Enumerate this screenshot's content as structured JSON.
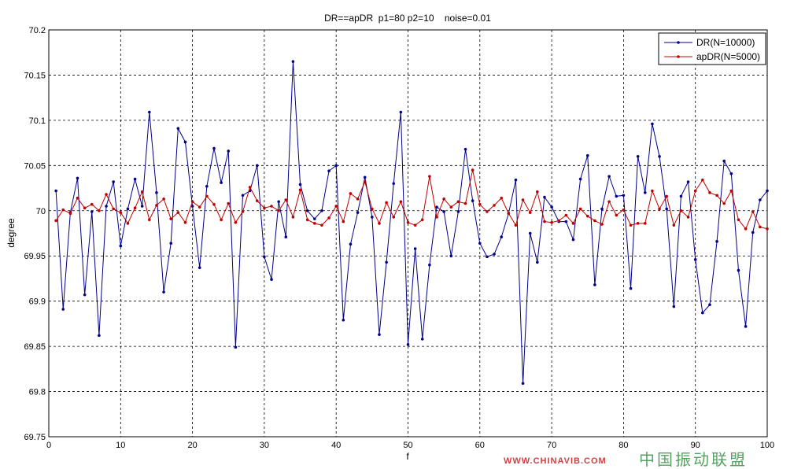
{
  "chart_data": {
    "type": "line",
    "title": "DR==apDR  p1=80 p2=10    noise=0.01",
    "xlabel": "f",
    "ylabel": "degree",
    "xlim": [
      0,
      100
    ],
    "ylim": [
      69.75,
      70.2
    ],
    "xticks": [
      "0",
      "10",
      "20",
      "30",
      "40",
      "50",
      "60",
      "70",
      "80",
      "90",
      "100"
    ],
    "yticks": [
      "69.75",
      "69.8",
      "69.85",
      "69.9",
      "69.95",
      "70",
      "70.05",
      "70.1",
      "70.15",
      "70.2"
    ],
    "grid": true,
    "legend_position": "top-right",
    "series": [
      {
        "name": "DR(N=10000)",
        "color": "#00008b",
        "values": [
          70.022,
          69.891,
          69.998,
          70.036,
          69.907,
          69.999,
          69.862,
          70.005,
          70.032,
          69.961,
          70.002,
          70.035,
          70.005,
          70.109,
          70.02,
          69.91,
          69.964,
          70.091,
          70.076,
          70.005,
          69.937,
          70.027,
          70.069,
          70.031,
          70.066,
          69.849,
          70.017,
          70.022,
          70.05,
          69.949,
          69.924,
          70.01,
          69.971,
          70.165,
          70.029,
          70.0,
          69.991,
          70.0,
          70.044,
          70.05,
          69.879,
          69.963,
          69.998,
          70.037,
          69.993,
          69.863,
          69.943,
          70.03,
          70.109,
          69.852,
          69.958,
          69.858,
          69.94,
          70.004,
          69.999,
          69.95,
          69.999,
          70.068,
          70.011,
          69.964,
          69.949,
          69.952,
          69.971,
          69.997,
          70.034,
          69.809,
          69.975,
          69.943,
          70.015,
          70.004,
          69.988,
          69.988,
          69.968,
          70.035,
          70.061,
          69.918,
          70.002,
          70.038,
          70.016,
          70.017,
          69.914,
          70.06,
          70.02,
          70.096,
          70.06,
          70.002,
          69.894,
          70.016,
          70.032,
          69.946,
          69.887,
          69.896,
          69.966,
          70.055,
          70.041,
          69.934,
          69.872,
          69.976,
          70.012,
          70.022
        ]
      },
      {
        "name": "apDR(N=5000)",
        "color": "#c00000",
        "values": [
          69.989,
          70.001,
          69.997,
          70.014,
          70.003,
          70.007,
          70.0,
          70.018,
          70.002,
          69.998,
          69.986,
          70.003,
          70.021,
          69.99,
          70.006,
          70.013,
          69.991,
          69.998,
          69.987,
          70.01,
          70.004,
          70.016,
          70.007,
          69.99,
          70.008,
          69.987,
          69.999,
          70.026,
          70.011,
          70.003,
          70.005,
          70.0,
          70.012,
          69.993,
          70.023,
          69.99,
          69.986,
          69.984,
          69.992,
          70.005,
          69.988,
          70.019,
          70.013,
          70.032,
          70.002,
          69.986,
          70.009,
          69.993,
          70.01,
          69.987,
          69.984,
          69.99,
          70.038,
          69.993,
          70.013,
          70.004,
          70.01,
          70.008,
          70.045,
          70.007,
          69.999,
          70.006,
          70.014,
          69.997,
          69.984,
          70.012,
          69.998,
          70.021,
          69.988,
          69.987,
          69.989,
          69.995,
          69.986,
          70.002,
          69.994,
          69.989,
          69.985,
          70.01,
          69.995,
          70.001,
          69.984,
          69.986,
          69.986,
          70.022,
          70.002,
          70.016,
          69.984,
          70.0,
          69.993,
          70.022,
          70.034,
          70.02,
          70.017,
          70.008,
          70.022,
          69.99,
          69.98,
          69.999,
          69.982,
          69.98
        ]
      }
    ]
  },
  "watermark": {
    "cn": "中国振动联盟",
    "url": "WWW.CHINAVIB.COM"
  }
}
